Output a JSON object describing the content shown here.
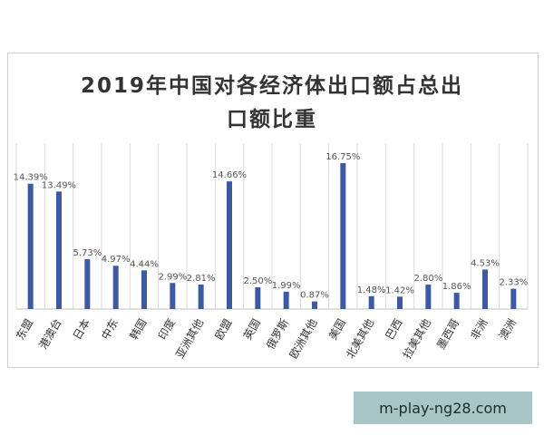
{
  "chart_data": {
    "type": "bar",
    "title": "2019年中国对各经济体出口额占总出口额比重",
    "title_lines": [
      "2019年中国对各经济体出口额占总出",
      "口额比重"
    ],
    "categories": [
      "东盟",
      "港澳台",
      "日本",
      "中东",
      "韩国",
      "印度",
      "亚洲其他",
      "欧盟",
      "英国",
      "俄罗斯",
      "欧洲其他",
      "美国",
      "北美其他",
      "巴西",
      "拉美其他",
      "墨西哥",
      "非洲",
      "澳洲"
    ],
    "values": [
      14.39,
      13.49,
      5.73,
      4.97,
      4.44,
      2.99,
      2.81,
      14.66,
      2.5,
      1.99,
      0.87,
      16.75,
      1.48,
      1.42,
      2.8,
      1.86,
      4.53,
      2.33
    ],
    "data_labels": [
      "14.39%",
      "13.49%",
      "5.73%",
      "4.97%",
      "4.44%",
      "2.99%",
      "2.81%",
      "14.66%",
      "2.50%",
      "1.99%",
      "0.87%",
      "16.75%",
      "1.48%",
      "1.42%",
      "2.80%",
      "1.86%",
      "4.53%",
      "2.33%"
    ],
    "ylim": [
      0,
      18
    ],
    "grid": "vertical",
    "legend": "none",
    "bar_color": "#3a5aa8"
  },
  "watermark": "m-play-ng28.com"
}
